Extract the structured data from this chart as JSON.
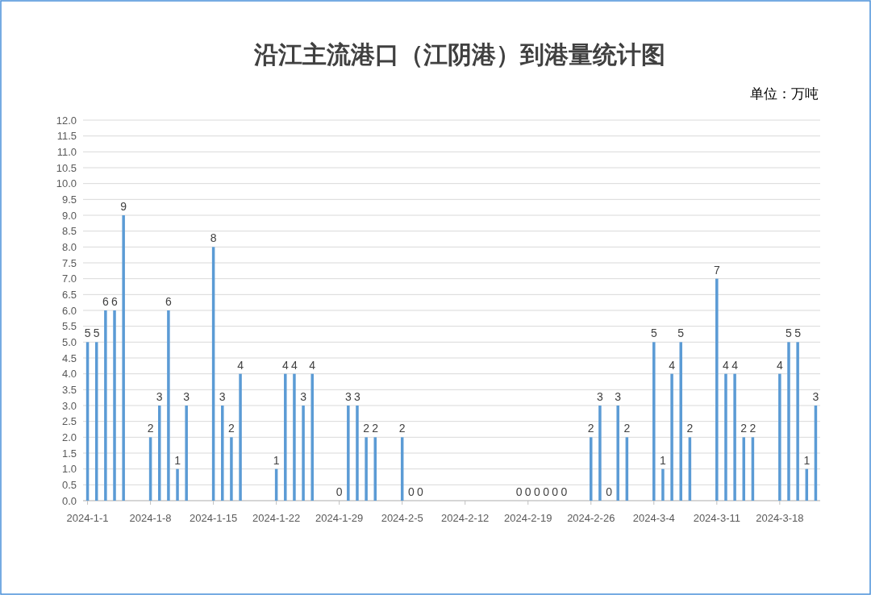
{
  "chart_data": {
    "type": "bar",
    "title": "沿江主流港口（江阴港）到港量统计图",
    "annotations": [
      "单位：万吨"
    ],
    "x": [
      "2024-01-01",
      "2024-01-02",
      "2024-01-03",
      "2024-01-04",
      "2024-01-05",
      "2024-01-08",
      "2024-01-09",
      "2024-01-10",
      "2024-01-11",
      "2024-01-12",
      "2024-01-15",
      "2024-01-16",
      "2024-01-17",
      "2024-01-18",
      "2024-01-22",
      "2024-01-23",
      "2024-01-24",
      "2024-01-25",
      "2024-01-26",
      "2024-01-29",
      "2024-01-30",
      "2024-01-31",
      "2024-02-01",
      "2024-02-02",
      "2024-02-05",
      "2024-02-06",
      "2024-02-07",
      "2024-02-18",
      "2024-02-19",
      "2024-02-20",
      "2024-02-21",
      "2024-02-22",
      "2024-02-23",
      "2024-02-26",
      "2024-02-27",
      "2024-02-28",
      "2024-02-29",
      "2024-03-01",
      "2024-03-04",
      "2024-03-05",
      "2024-03-06",
      "2024-03-07",
      "2024-03-08",
      "2024-03-11",
      "2024-03-12",
      "2024-03-13",
      "2024-03-14",
      "2024-03-15",
      "2024-03-18",
      "2024-03-19",
      "2024-03-20",
      "2024-03-21",
      "2024-03-22"
    ],
    "values": [
      5,
      5,
      6,
      6,
      9,
      2,
      3,
      6,
      1,
      3,
      8,
      3,
      2,
      4,
      1,
      4,
      4,
      3,
      4,
      0,
      3,
      3,
      2,
      2,
      2,
      0,
      0,
      0,
      0,
      0,
      0,
      0,
      0,
      2,
      3,
      0,
      3,
      2,
      5,
      1,
      4,
      5,
      2,
      7,
      4,
      4,
      2,
      2,
      4,
      5,
      5,
      1,
      3
    ],
    "color": "#5b9bd5",
    "data_labels": true,
    "grid": "y",
    "xlim": [
      "2023-12-31T12:00",
      "2024-03-22T12:00"
    ],
    "xticks": [
      {
        "value": "2024-01-01",
        "label": "2024-1-1"
      },
      {
        "value": "2024-01-08",
        "label": "2024-1-8"
      },
      {
        "value": "2024-01-15",
        "label": "2024-1-15"
      },
      {
        "value": "2024-01-22",
        "label": "2024-1-22"
      },
      {
        "value": "2024-01-29",
        "label": "2024-1-29"
      },
      {
        "value": "2024-02-05",
        "label": "2024-2-5"
      },
      {
        "value": "2024-02-12",
        "label": "2024-2-12"
      },
      {
        "value": "2024-02-19",
        "label": "2024-2-19"
      },
      {
        "value": "2024-02-26",
        "label": "2024-2-26"
      },
      {
        "value": "2024-03-04",
        "label": "2024-3-4"
      },
      {
        "value": "2024-03-11",
        "label": "2024-3-11"
      },
      {
        "value": "2024-03-18",
        "label": "2024-3-18"
      }
    ],
    "ylim": [
      0,
      12
    ],
    "yticks": [
      {
        "value": 0,
        "label": "0.0"
      },
      {
        "value": 0.5,
        "label": "0.5"
      },
      {
        "value": 1,
        "label": "1.0"
      },
      {
        "value": 1.5,
        "label": "1.5"
      },
      {
        "value": 2,
        "label": "2.0"
      },
      {
        "value": 2.5,
        "label": "2.5"
      },
      {
        "value": 3,
        "label": "3.0"
      },
      {
        "value": 3.5,
        "label": "3.5"
      },
      {
        "value": 4,
        "label": "4.0"
      },
      {
        "value": 4.5,
        "label": "4.5"
      },
      {
        "value": 5,
        "label": "5.0"
      },
      {
        "value": 5.5,
        "label": "5.5"
      },
      {
        "value": 6,
        "label": "6.0"
      },
      {
        "value": 6.5,
        "label": "6.5"
      },
      {
        "value": 7,
        "label": "7.0"
      },
      {
        "value": 7.5,
        "label": "7.5"
      },
      {
        "value": 8,
        "label": "8.0"
      },
      {
        "value": 8.5,
        "label": "8.5"
      },
      {
        "value": 9,
        "label": "9.0"
      },
      {
        "value": 9.5,
        "label": "9.5"
      },
      {
        "value": 10,
        "label": "10.0"
      },
      {
        "value": 10.5,
        "label": "10.5"
      },
      {
        "value": 11,
        "label": "11.0"
      },
      {
        "value": 11.5,
        "label": "11.5"
      },
      {
        "value": 12,
        "label": "12.0"
      }
    ]
  }
}
